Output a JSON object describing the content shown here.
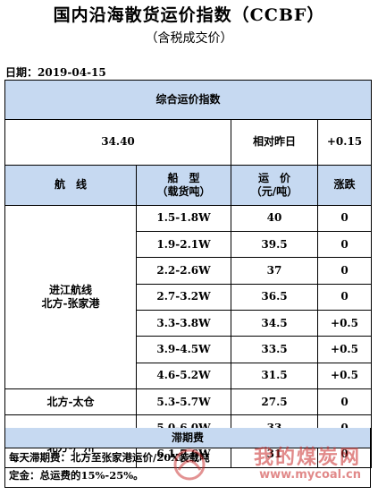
{
  "header": {
    "title": "国内沿海散货运价指数（CCBF）",
    "subtitle": "（含税成交价）",
    "date": "日期：2019-04-15"
  },
  "composite": {
    "label": "综合运价指数",
    "value": "34.40",
    "change_label": "相对昨日",
    "change": "+0.15"
  },
  "columns": {
    "route": "航　线",
    "ship_type": "船　型\n（载货吨）",
    "price": "运　价\n（元/吨）",
    "change": "涨跌"
  },
  "groups": [
    {
      "route": "进江航线\n北方-张家港",
      "rows": [
        {
          "ship": "1.5-1.8W",
          "price": "40",
          "change": "0"
        },
        {
          "ship": "1.9-2.1W",
          "price": "39.5",
          "change": "0"
        },
        {
          "ship": "2.2-2.6W",
          "price": "37",
          "change": "0"
        },
        {
          "ship": "2.7-3.2W",
          "price": "36.5",
          "change": "0"
        },
        {
          "ship": "3.3-3.8W",
          "price": "34.5",
          "change": "+0.5"
        },
        {
          "ship": "3.9-4.5W",
          "price": "33.5",
          "change": "+0.5"
        },
        {
          "ship": "4.6-5.2W",
          "price": "31.5",
          "change": "+0.5"
        }
      ]
    },
    {
      "route": "北方-太仓",
      "rows": [
        {
          "ship": "5.3-5.7W",
          "price": "27.5",
          "change": "0"
        }
      ]
    },
    {
      "route": "华南航线\n北方-广州",
      "rows": [
        {
          "ship": "5.0-6.0W",
          "price": "33",
          "change": "0"
        },
        {
          "ship": "6.1-7.6W",
          "price": "31",
          "change": "0"
        }
      ]
    }
  ],
  "fees": {
    "header": "滞期费",
    "line1": "每天滞期费：北方至张家港运价/20X装载吨",
    "line2": "定金：总运费的15%-25%。"
  },
  "watermark": {
    "text": "我的煤炭网",
    "url": "www.mycoal.cn"
  },
  "colors": {
    "header_fill": "#c6d9f1",
    "watermark": "#c82828"
  }
}
